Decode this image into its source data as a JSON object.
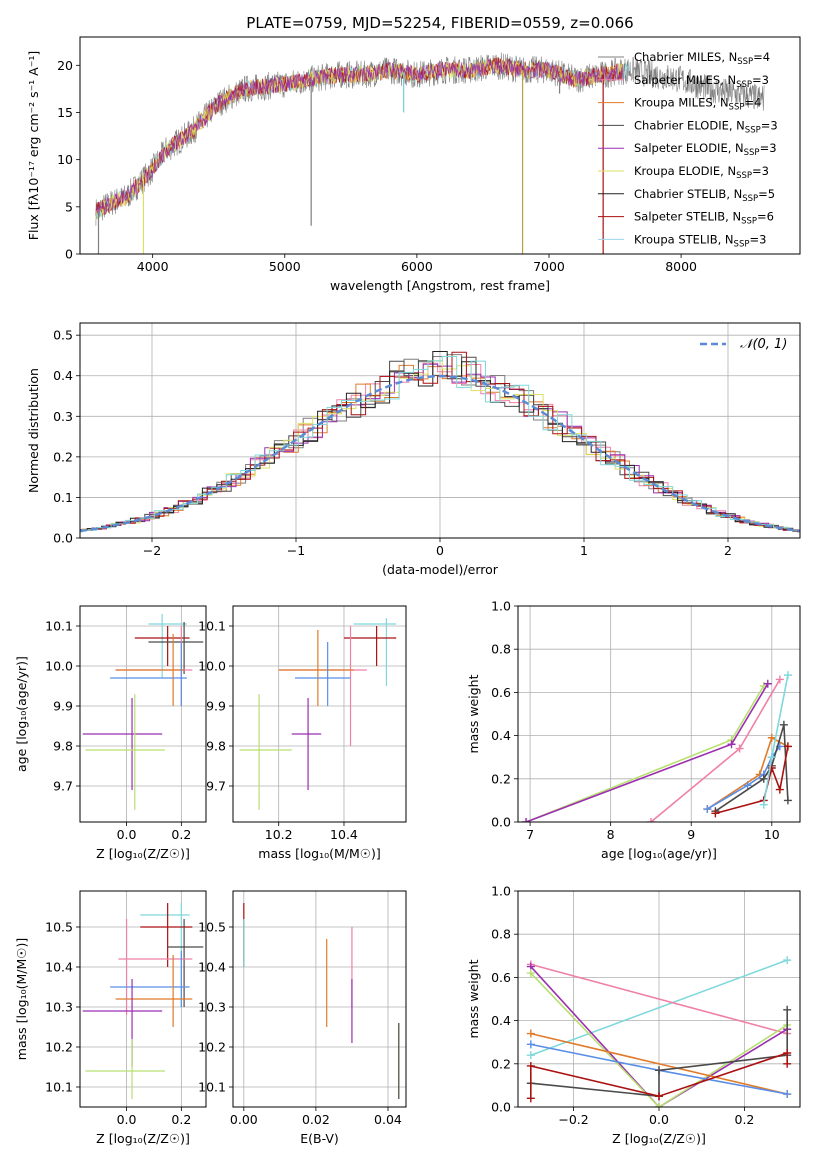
{
  "figure": {
    "title": "PLATE=0759, MJD=52254, FIBERID=0559, z=0.066"
  },
  "colors": {
    "Chabrier MILES": "#7f7f7f",
    "Salpeter MILES": "#f07fa8",
    "Kroupa MILES": "#e07b2a",
    "Chabrier ELODIE": "#4a4a4a",
    "Salpeter ELODIE": "#9b2fb0",
    "Kroupa ELODIE": "#dde066",
    "Chabrier STELIB": "#222222",
    "Salpeter STELIB": "#aa1111",
    "Kroupa STELIB": "#9ad6f0",
    "spec_cyan": "#6fd3d8",
    "normal_curve": "#5b8bd6",
    "Kroupa STELIB panel": "#7fd8dc",
    "green": "#b8e070",
    "blue": "#5b8ee6"
  },
  "chart_data": [
    {
      "id": "spectrum",
      "type": "line",
      "xlabel": "wavelength [Angstrom, rest frame]",
      "ylabel": "Flux [fλ10⁻¹⁷ erg cm⁻² s⁻¹ A⁻¹]",
      "xlim": [
        3450,
        8900
      ],
      "ylim": [
        0,
        23
      ],
      "xticks": [
        4000,
        5000,
        6000,
        7000,
        8000
      ],
      "yticks": [
        0,
        5,
        10,
        15,
        20
      ],
      "legend_position": "top-right",
      "legend": [
        "Chabrier MILES, N_SSP=4",
        "Salpeter MILES, N_SSP=3",
        "Kroupa MILES, N_SSP=4",
        "Chabrier ELODIE, N_SSP=3",
        "Salpeter ELODIE, N_SSP=3",
        "Kroupa ELODIE, N_SSP=3",
        "Chabrier STELIB, N_SSP=5",
        "Salpeter STELIB, N_SSP=6",
        "Kroupa STELIB, N_SSP=3"
      ],
      "continuum": {
        "x": [
          3570,
          3700,
          3800,
          3900,
          4000,
          4100,
          4200,
          4300,
          4400,
          4500,
          4700,
          5000,
          5200,
          5400,
          5600,
          5800,
          6000,
          6200,
          6400,
          6600,
          6800,
          7000,
          7200,
          7400,
          7600,
          7800,
          8000,
          8200,
          8400,
          8600
        ],
        "y": [
          4.5,
          5.5,
          6.0,
          7.5,
          9.0,
          11.0,
          12.0,
          13.0,
          14.5,
          16.0,
          17.5,
          18.0,
          18.5,
          19.0,
          19.0,
          19.5,
          19.0,
          19.5,
          19.5,
          20.0,
          19.5,
          19.5,
          18.5,
          19.0,
          19.5,
          19.0,
          18.5,
          17.5,
          17.0,
          16.5
        ]
      }
    },
    {
      "id": "residuals",
      "type": "histogram",
      "xlabel": "(data-model)/error",
      "ylabel": "Normed distribution",
      "xlim": [
        -2.5,
        2.5
      ],
      "ylim": [
        0,
        0.53
      ],
      "xticks": [
        -2,
        -1,
        0,
        1,
        2
      ],
      "yticks": [
        0.0,
        0.1,
        0.2,
        0.3,
        0.4,
        0.5
      ],
      "grid": true,
      "legend": [
        "𝒩(0, 1)"
      ],
      "legend_position": "top-right",
      "bin_width": 0.1
    },
    {
      "id": "age_vs_Z",
      "type": "errorbar",
      "xlabel": "Z [log₁₀(Z/Z☉)]",
      "ylabel": "age  [log₁₀(age/yr)]",
      "xlim": [
        -0.17,
        0.29
      ],
      "ylim": [
        9.61,
        10.15
      ],
      "xticks": [
        0.0,
        0.2
      ],
      "yticks": [
        9.7,
        9.8,
        9.9,
        10.0,
        10.1
      ],
      "grid": true,
      "points": [
        {
          "c": "#7fd8dc",
          "x": 0.13,
          "xe": [
            0.08,
            0.22
          ],
          "y": 10.105,
          "ye": [
            9.97,
            10.13
          ]
        },
        {
          "c": "#aa1111",
          "x": 0.15,
          "xe": [
            0.03,
            0.23
          ],
          "y": 10.07,
          "ye": [
            10.0,
            10.1
          ]
        },
        {
          "c": "#4a4a4a",
          "x": 0.21,
          "xe": [
            0.08,
            0.28
          ],
          "y": 10.06,
          "ye": [
            9.98,
            10.11
          ]
        },
        {
          "c": "#f07fa8",
          "x": 0.2,
          "xe": [
            -0.04,
            0.24
          ],
          "y": 9.99,
          "ye": [
            9.9,
            10.1
          ]
        },
        {
          "c": "#e07b2a",
          "x": 0.17,
          "xe": [
            -0.04,
            0.21
          ],
          "y": 9.99,
          "ye": [
            9.9,
            10.08
          ]
        },
        {
          "c": "#5b8ee6",
          "x": 0.2,
          "xe": [
            -0.06,
            0.22
          ],
          "y": 9.97,
          "ye": [
            9.9,
            10.06
          ]
        },
        {
          "c": "#9b2fb0",
          "x": 0.02,
          "xe": [
            -0.16,
            0.13
          ],
          "y": 9.83,
          "ye": [
            9.69,
            9.92
          ]
        },
        {
          "c": "#b8e070",
          "x": 0.03,
          "xe": [
            -0.15,
            0.14
          ],
          "y": 9.79,
          "ye": [
            9.64,
            9.93
          ]
        }
      ]
    },
    {
      "id": "age_vs_mass",
      "type": "errorbar",
      "xlabel": "mass [log₁₀(M/M☉)]",
      "ylabel": "",
      "xlim": [
        10.06,
        10.59
      ],
      "ylim": [
        9.61,
        10.15
      ],
      "xticks": [
        10.2,
        10.4
      ],
      "yticks": [
        9.7,
        9.8,
        9.9,
        10.0,
        10.1
      ],
      "grid": true,
      "points": [
        {
          "c": "#7fd8dc",
          "x": 10.53,
          "xe": [
            10.43,
            10.56
          ],
          "y": 10.105,
          "ye": [
            9.95,
            10.12
          ]
        },
        {
          "c": "#aa1111",
          "x": 10.5,
          "xe": [
            10.4,
            10.56
          ],
          "y": 10.07,
          "ye": [
            10.0,
            10.1
          ]
        },
        {
          "c": "#f07fa8",
          "x": 10.42,
          "xe": [
            10.2,
            10.47
          ],
          "y": 9.99,
          "ye": [
            9.8,
            10.1
          ]
        },
        {
          "c": "#e07b2a",
          "x": 10.32,
          "xe": [
            10.2,
            10.43
          ],
          "y": 9.99,
          "ye": [
            9.9,
            10.09
          ]
        },
        {
          "c": "#5b8ee6",
          "x": 10.35,
          "xe": [
            10.25,
            10.42
          ],
          "y": 9.97,
          "ye": [
            9.9,
            10.06
          ]
        },
        {
          "c": "#9b2fb0",
          "x": 10.29,
          "xe": [
            10.24,
            10.33
          ],
          "y": 9.83,
          "ye": [
            9.69,
            9.92
          ]
        },
        {
          "c": "#b8e070",
          "x": 10.14,
          "xe": [
            10.08,
            10.24
          ],
          "y": 9.79,
          "ye": [
            9.64,
            9.93
          ]
        }
      ]
    },
    {
      "id": "mass_weight_vs_age",
      "type": "line",
      "xlabel": "age  [log₁₀(age/yr)]",
      "ylabel": "mass weight",
      "xlim": [
        6.85,
        10.35
      ],
      "ylim": [
        0,
        1
      ],
      "xticks": [
        7,
        8,
        9,
        10
      ],
      "yticks": [
        0.0,
        0.2,
        0.4,
        0.6,
        0.8,
        1.0
      ],
      "grid": true,
      "series": [
        {
          "c": "#b8e070",
          "x": [
            6.95,
            9.5,
            9.9
          ],
          "y": [
            0.0,
            0.38,
            0.63
          ]
        },
        {
          "c": "#9b2fb0",
          "x": [
            6.95,
            9.5,
            9.95
          ],
          "y": [
            0.0,
            0.36,
            0.64
          ]
        },
        {
          "c": "#f07fa8",
          "x": [
            8.5,
            9.6,
            10.1
          ],
          "y": [
            0.0,
            0.34,
            0.66
          ]
        },
        {
          "c": "#e07b2a",
          "x": [
            9.2,
            9.85,
            10.0,
            10.2
          ],
          "y": [
            0.06,
            0.22,
            0.39,
            0.35
          ]
        },
        {
          "c": "#5b8ee6",
          "x": [
            9.2,
            9.7,
            9.9,
            10.0,
            10.1
          ],
          "y": [
            0.06,
            0.17,
            0.22,
            0.3,
            0.35
          ]
        },
        {
          "c": "#4a4a4a",
          "x": [
            9.3,
            9.9,
            10.0,
            10.15,
            10.2
          ],
          "y": [
            0.05,
            0.2,
            0.26,
            0.45,
            0.1
          ]
        },
        {
          "c": "#aa1111",
          "x": [
            9.3,
            9.9,
            10.0,
            10.1,
            10.2
          ],
          "y": [
            0.04,
            0.1,
            0.25,
            0.15,
            0.35
          ]
        },
        {
          "c": "#7fd8dc",
          "x": [
            9.9,
            10.0,
            10.2
          ],
          "y": [
            0.08,
            0.3,
            0.68
          ]
        }
      ]
    },
    {
      "id": "mass_vs_Z",
      "type": "errorbar",
      "xlabel": "Z [log₁₀(Z/Z☉)]",
      "ylabel": "mass [log₁₀(M/M☉)]",
      "xlim": [
        -0.17,
        0.29
      ],
      "ylim": [
        10.05,
        10.59
      ],
      "xticks": [
        0.0,
        0.2
      ],
      "yticks": [
        10.1,
        10.2,
        10.3,
        10.4,
        10.5
      ],
      "grid": true,
      "points": [
        {
          "c": "#7fd8dc",
          "x": 0.2,
          "xe": [
            0.05,
            0.23
          ],
          "y": 10.53,
          "ye": [
            10.3,
            10.56
          ]
        },
        {
          "c": "#aa1111",
          "x": 0.15,
          "xe": [
            0.05,
            0.24
          ],
          "y": 10.5,
          "ye": [
            10.4,
            10.56
          ]
        },
        {
          "c": "#4a4a4a",
          "x": 0.21,
          "xe": [
            0.15,
            0.28
          ],
          "y": 10.45,
          "ye": [
            10.3,
            10.52
          ]
        },
        {
          "c": "#f07fa8",
          "x": 0.0,
          "xe": [
            -0.03,
            0.24
          ],
          "y": 10.42,
          "ye": [
            10.28,
            10.52
          ]
        },
        {
          "c": "#5b8ee6",
          "x": 0.2,
          "xe": [
            -0.06,
            0.23
          ],
          "y": 10.35,
          "ye": [
            10.3,
            10.44
          ]
        },
        {
          "c": "#e07b2a",
          "x": 0.17,
          "xe": [
            -0.04,
            0.24
          ],
          "y": 10.32,
          "ye": [
            10.25,
            10.43
          ]
        },
        {
          "c": "#9b2fb0",
          "x": 0.02,
          "xe": [
            -0.16,
            0.13
          ],
          "y": 10.29,
          "ye": [
            10.15,
            10.37
          ]
        },
        {
          "c": "#b8e070",
          "x": 0.02,
          "xe": [
            -0.15,
            0.14
          ],
          "y": 10.14,
          "ye": [
            10.07,
            10.22
          ]
        }
      ]
    },
    {
      "id": "mass_vs_EBV",
      "type": "errorbar",
      "xlabel": "E(B-V)",
      "ylabel": "",
      "xlim": [
        -0.003,
        0.045
      ],
      "ylim": [
        10.05,
        10.59
      ],
      "xticks": [
        0.0,
        0.02,
        0.04
      ],
      "yticks": [
        10.1,
        10.2,
        10.3,
        10.4,
        10.5
      ],
      "grid": true,
      "points": [
        {
          "c": "#aa1111",
          "x": 0.0,
          "y": 10.5,
          "ye": [
            10.4,
            10.56
          ]
        },
        {
          "c": "#7fd8dc",
          "x": 0.0,
          "y": 10.45,
          "ye": [
            10.4,
            10.52
          ]
        },
        {
          "c": "#e07b2a",
          "x": 0.023,
          "y": 10.38,
          "ye": [
            10.25,
            10.47
          ]
        },
        {
          "c": "#f07fa8",
          "x": 0.03,
          "y": 10.42,
          "ye": [
            10.3,
            10.5
          ]
        },
        {
          "c": "#9b2fb0",
          "x": 0.03,
          "y": 10.29,
          "ye": [
            10.21,
            10.37
          ]
        },
        {
          "c": "#b8e070",
          "x": 0.043,
          "y": 10.15,
          "ye": [
            10.07,
            10.26
          ]
        },
        {
          "c": "#4a4a4a",
          "x": 0.043,
          "y": 10.18,
          "ye": [
            10.07,
            10.26
          ]
        }
      ]
    },
    {
      "id": "mass_weight_vs_Z",
      "type": "line",
      "xlabel": "Z [log₁₀(Z/Z☉)]",
      "ylabel": "mass weight",
      "xlim": [
        -0.33,
        0.33
      ],
      "ylim": [
        0,
        1
      ],
      "xticks": [
        -0.2,
        0.0,
        0.2
      ],
      "yticks": [
        0.0,
        0.2,
        0.4,
        0.6,
        0.8,
        1.0
      ],
      "grid": true,
      "series": [
        {
          "c": "#7fd8dc",
          "x": [
            -0.3,
            0.3
          ],
          "y": [
            0.24,
            0.68
          ]
        },
        {
          "c": "#f07fa8",
          "x": [
            -0.3,
            0.3
          ],
          "y": [
            0.66,
            0.34
          ]
        },
        {
          "c": "#9b2fb0",
          "x": [
            -0.3,
            0.0,
            0.3
          ],
          "y": [
            0.65,
            0.0,
            0.36
          ]
        },
        {
          "c": "#b8e070",
          "x": [
            -0.3,
            0.0,
            0.3
          ],
          "y": [
            0.62,
            0.0,
            0.38
          ]
        },
        {
          "c": "#e07b2a",
          "x": [
            -0.3,
            0.3
          ],
          "y": [
            0.34,
            0.06
          ]
        },
        {
          "c": "#5b8ee6",
          "x": [
            -0.3,
            0.0,
            0.3
          ],
          "y": [
            0.29,
            0.17,
            0.06
          ]
        },
        {
          "c": "#4a4a4a",
          "x": [
            -0.3,
            0.0,
            0.0,
            0.3,
            0.3
          ],
          "y": [
            0.11,
            0.05,
            0.17,
            0.24,
            0.45
          ]
        },
        {
          "c": "#aa1111",
          "x": [
            -0.3,
            -0.3,
            0.0,
            0.3,
            0.3
          ],
          "y": [
            0.04,
            0.19,
            0.05,
            0.25,
            0.2
          ]
        }
      ]
    }
  ]
}
